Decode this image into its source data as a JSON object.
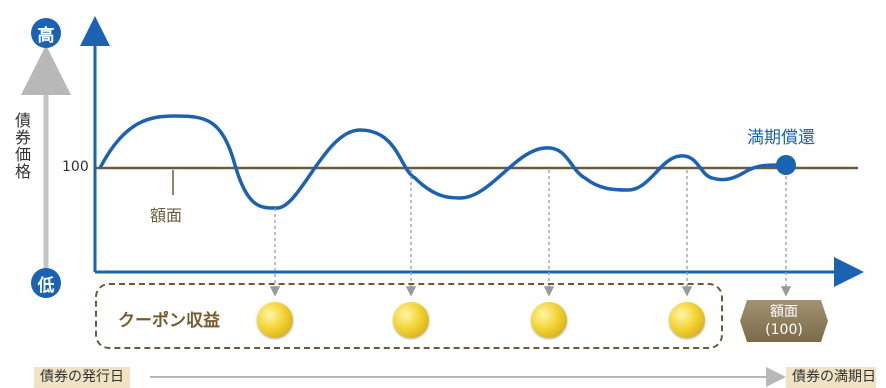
{
  "y_axis": {
    "high_label": "高",
    "low_label": "低",
    "title": "債券価格",
    "value_100": "100"
  },
  "face_value_label": "額面",
  "maturity_label": "満期償還",
  "coupon_label": "クーポン収益",
  "redemption_badge": {
    "line1": "額面",
    "line2": "(100)"
  },
  "timeline": {
    "start_label": "債券の発行日",
    "end_label": "債券の満期日"
  },
  "colors": {
    "blue": "#1b62b3",
    "face_line": "#6b5a3d",
    "coin": "#f2d230",
    "tag_bg": "#efe3c4"
  }
}
